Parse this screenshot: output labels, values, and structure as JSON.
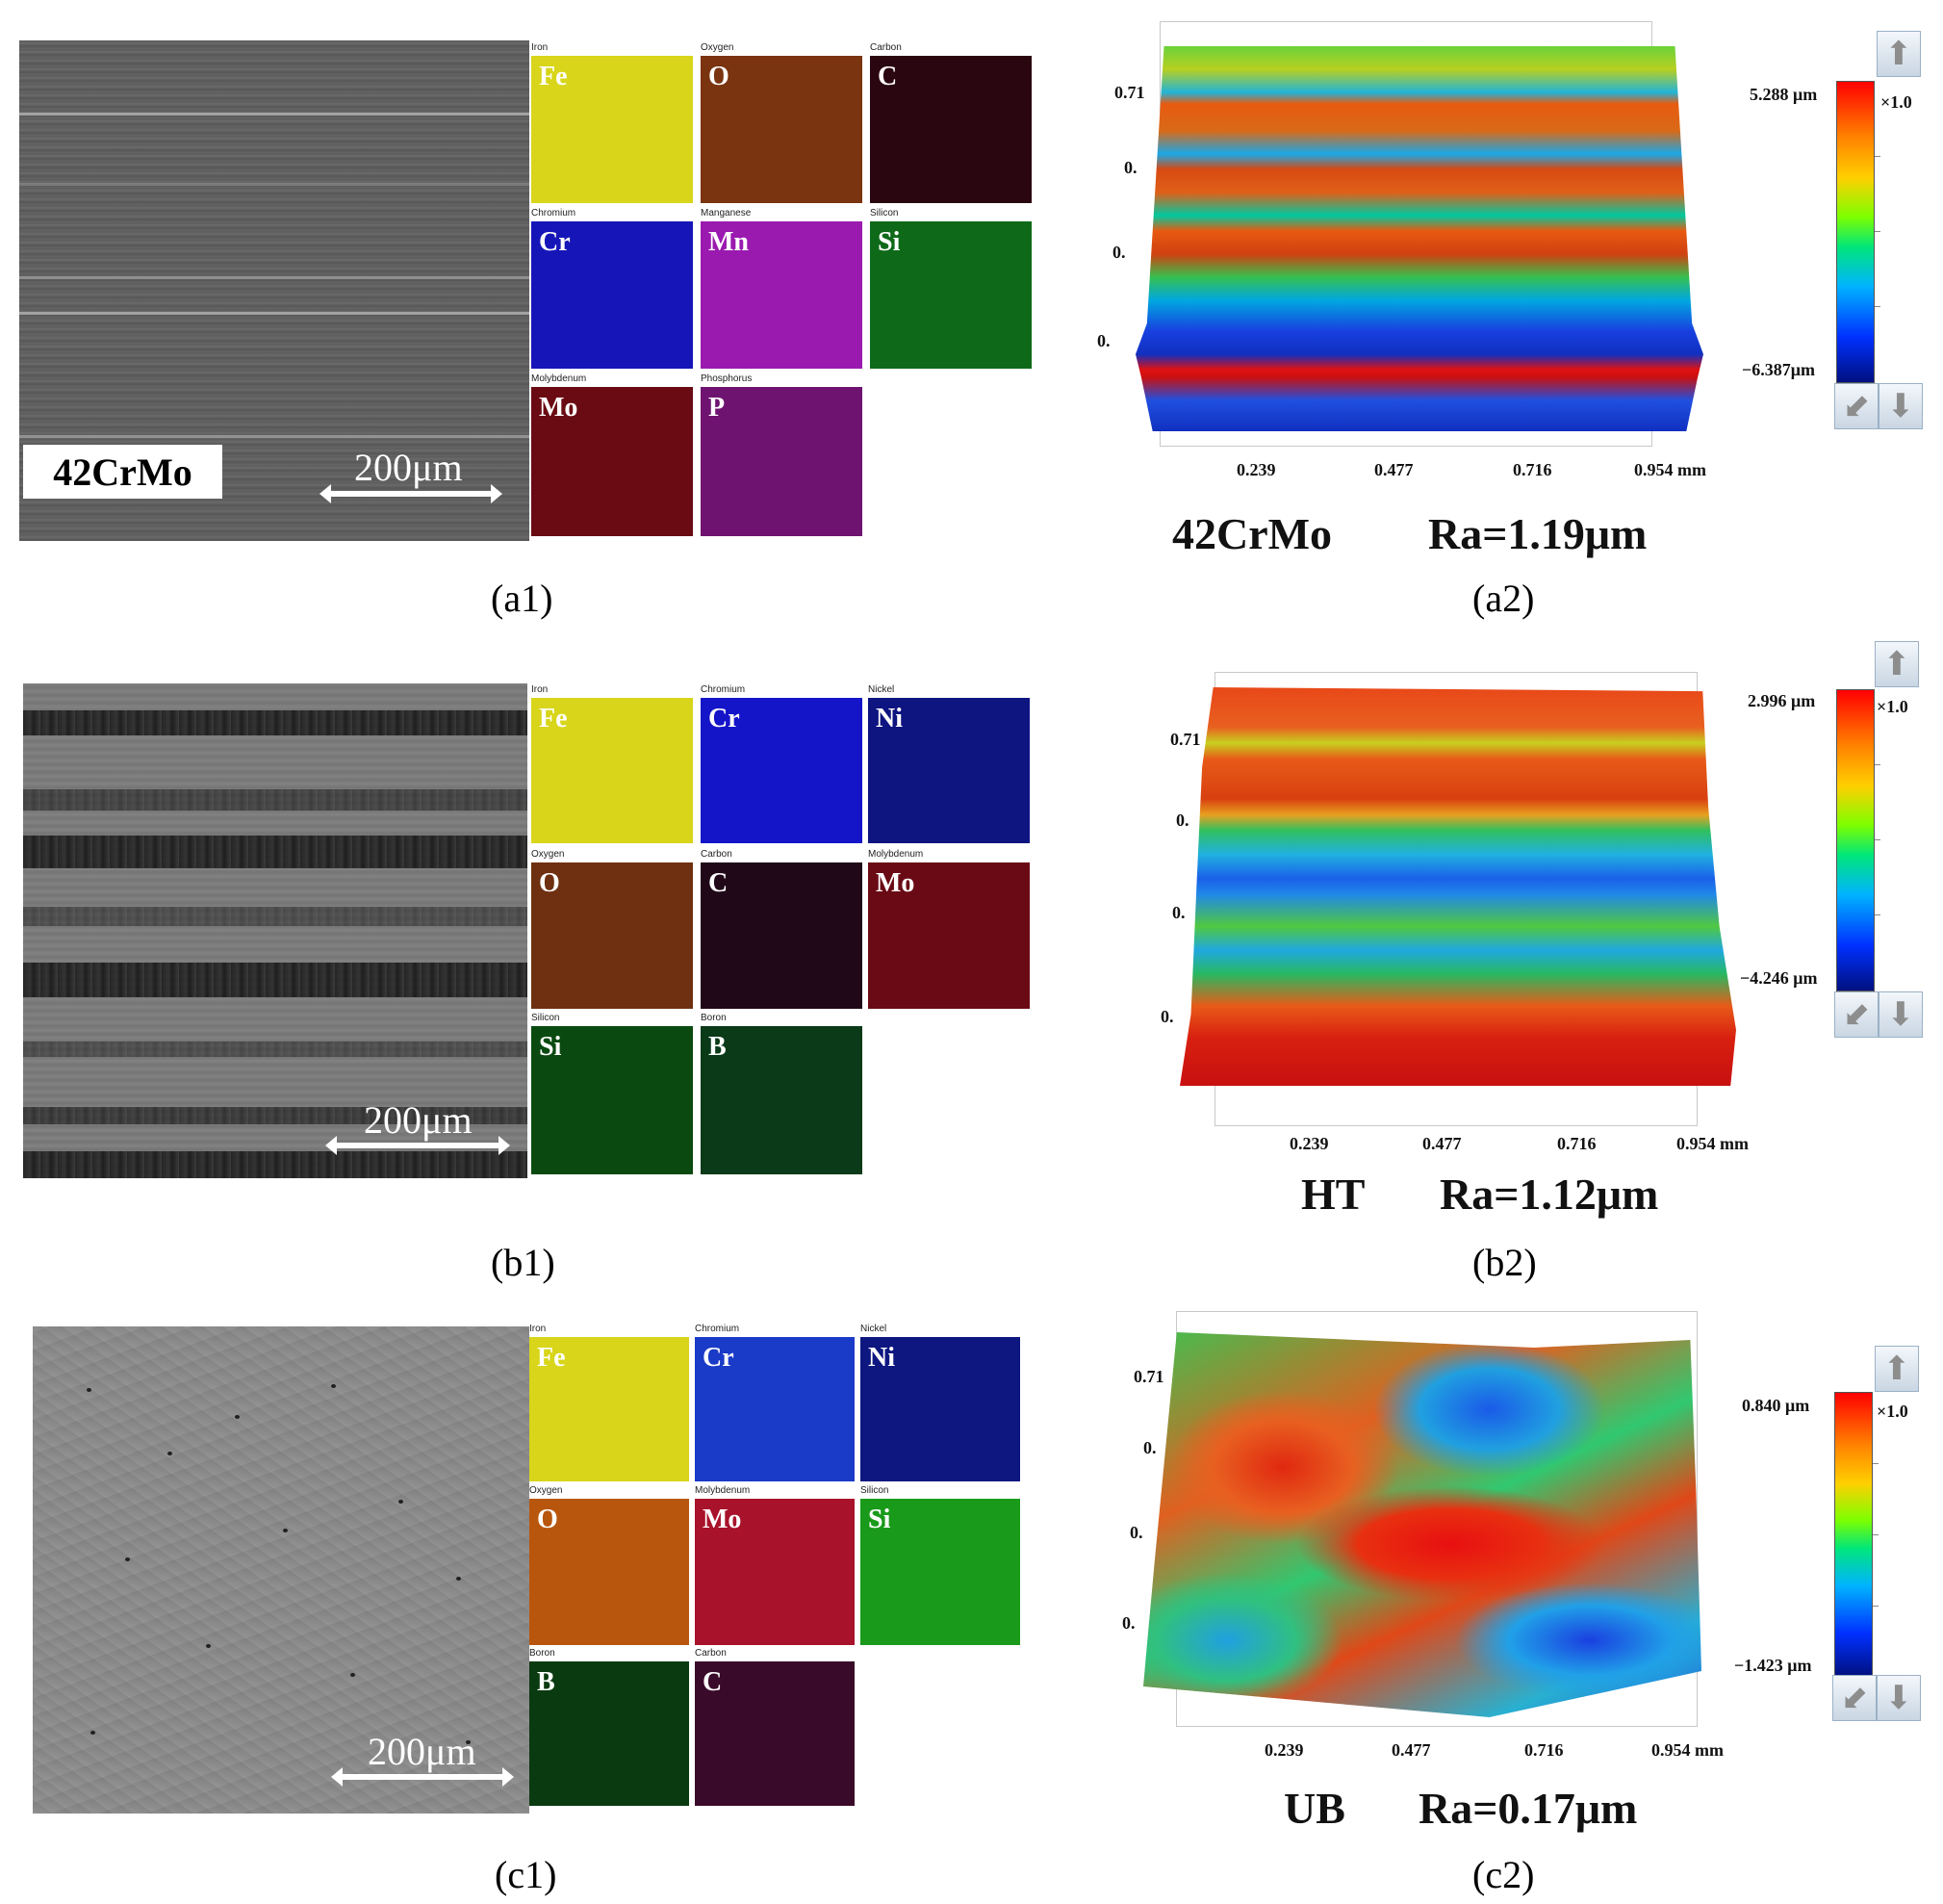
{
  "rows": [
    {
      "sample": "42CrMo",
      "scale": "200μm",
      "caption_left": "(a1)",
      "caption_right": "(a2)",
      "roughness": "Ra=1.19μm",
      "eds": [
        {
          "title": "Iron",
          "symbol": "Fe",
          "color": "#d8d51a"
        },
        {
          "title": "Oxygen",
          "symbol": "O",
          "color": "#7a3410"
        },
        {
          "title": "Carbon",
          "symbol": "C",
          "color": "#2a0610"
        },
        {
          "title": "Chromium",
          "symbol": "Cr",
          "color": "#1616b8"
        },
        {
          "title": "Manganese",
          "symbol": "Mn",
          "color": "#9a1ab0"
        },
        {
          "title": "Silicon",
          "symbol": "Si",
          "color": "#0e6a18"
        },
        {
          "title": "Molybdenum",
          "symbol": "Mo",
          "color": "#6a0a12"
        },
        {
          "title": "Phosphorus",
          "symbol": "P",
          "color": "#6e1470"
        }
      ],
      "topo": {
        "y_ticks": [
          "0.71",
          "0.",
          "0.",
          "0."
        ],
        "x_ticks": [
          "0.239",
          "0.477",
          "0.716",
          "0.954 mm"
        ],
        "cbar_max": "5.288 μm",
        "cbar_min": "−6.387μm",
        "cbar_scale": "×1.0"
      }
    },
    {
      "sample": "HT",
      "scale": "200μm",
      "caption_left": "(b1)",
      "caption_right": "(b2)",
      "roughness": "Ra=1.12μm",
      "eds": [
        {
          "title": "Iron",
          "symbol": "Fe",
          "color": "#d8d51a"
        },
        {
          "title": "Chromium",
          "symbol": "Cr",
          "color": "#1414c8"
        },
        {
          "title": "Nickel",
          "symbol": "Ni",
          "color": "#0e1480"
        },
        {
          "title": "Oxygen",
          "symbol": "O",
          "color": "#6e3010"
        },
        {
          "title": "Carbon",
          "symbol": "C",
          "color": "#200818"
        },
        {
          "title": "Molybdenum",
          "symbol": "Mo",
          "color": "#6a0a14"
        },
        {
          "title": "Silicon",
          "symbol": "Si",
          "color": "#0a4a10"
        },
        {
          "title": "Boron",
          "symbol": "B",
          "color": "#0a3a18"
        }
      ],
      "topo": {
        "y_ticks": [
          "0.71",
          "0.",
          "0.",
          "0."
        ],
        "x_ticks": [
          "0.239",
          "0.477",
          "0.716",
          "0.954 mm"
        ],
        "cbar_max": "2.996 μm",
        "cbar_min": "−4.246 μm",
        "cbar_scale": "×1.0"
      }
    },
    {
      "sample": "UB",
      "scale": "200μm",
      "caption_left": "(c1)",
      "caption_right": "(c2)",
      "roughness": "Ra=0.17μm",
      "eds": [
        {
          "title": "Iron",
          "symbol": "Fe",
          "color": "#d8d51a"
        },
        {
          "title": "Chromium",
          "symbol": "Cr",
          "color": "#1a3ac8"
        },
        {
          "title": "Nickel",
          "symbol": "Ni",
          "color": "#0e1680"
        },
        {
          "title": "Oxygen",
          "symbol": "O",
          "color": "#b8560e"
        },
        {
          "title": "Molybdenum",
          "symbol": "Mo",
          "color": "#a8122a"
        },
        {
          "title": "Silicon",
          "symbol": "Si",
          "color": "#1a9a1a"
        },
        {
          "title": "Boron",
          "symbol": "B",
          "color": "#0a3a10"
        },
        {
          "title": "Carbon",
          "symbol": "C",
          "color": "#3a0a2a"
        }
      ],
      "topo": {
        "y_ticks": [
          "0.71",
          "0.",
          "0.",
          "0."
        ],
        "x_ticks": [
          "0.239",
          "0.477",
          "0.716",
          "0.954 mm"
        ],
        "cbar_max": "0.840 μm",
        "cbar_min": "−1.423 μm",
        "cbar_scale": "×1.0"
      }
    }
  ]
}
